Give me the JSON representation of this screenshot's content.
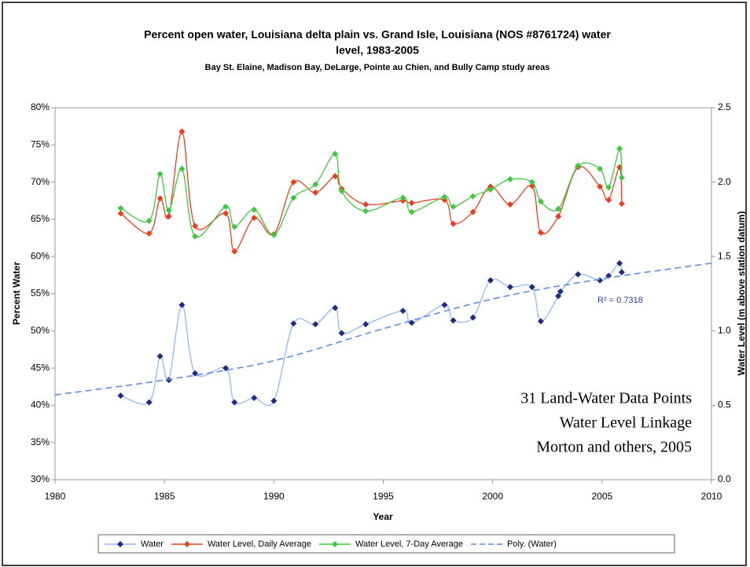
{
  "chart_data": {
    "type": "line",
    "title": "Percent open water, Louisiana delta plain vs. Grand Isle, Louisiana (NOS #8761724) water",
    "title_line2": "level, 1983-2005",
    "subtitle": "Bay St. Elaine, Madison Bay, DeLarge, Pointe au Chien, and Bully Camp study areas",
    "x_label": "Year",
    "y_label": "Percent Water",
    "y2_label": "Water Level (m above station datum)",
    "xlim": [
      1980,
      2010
    ],
    "xticks": [
      1980,
      1985,
      1990,
      1995,
      2000,
      2005,
      2010
    ],
    "ylim": [
      30,
      80
    ],
    "yticks": [
      {
        "value": 30,
        "label": "30%"
      },
      {
        "value": 35,
        "label": "35%"
      },
      {
        "value": 40,
        "label": "40%"
      },
      {
        "value": 45,
        "label": "45%"
      },
      {
        "value": 50,
        "label": "50%"
      },
      {
        "value": 55,
        "label": "55%"
      },
      {
        "value": 60,
        "label": "60%"
      },
      {
        "value": 65,
        "label": "65%"
      },
      {
        "value": 70,
        "label": "70%"
      },
      {
        "value": 75,
        "label": "75%"
      },
      {
        "value": 80,
        "label": "80%"
      }
    ],
    "y2lim": [
      0,
      2.5
    ],
    "y2ticks": [
      {
        "value": 0,
        "label": "0.0"
      },
      0.5,
      {
        "value": 1,
        "label": "1.0"
      },
      1.5,
      {
        "value": 2,
        "label": "2.0"
      },
      2.5
    ],
    "grid": false,
    "legend": "bottom",
    "series": [
      {
        "name": "Water",
        "color": "#8fb8f2",
        "marker_color": "#1f2a80",
        "smooth": true,
        "x": [
          1983.0,
          1984.3,
          1984.8,
          1985.2,
          1985.8,
          1986.4,
          1987.8,
          1988.2,
          1989.1,
          1990.0,
          1990.9,
          1991.9,
          1992.8,
          1993.1,
          1994.2,
          1995.9,
          1996.3,
          1997.8,
          1998.2,
          1999.1,
          1999.9,
          2000.8,
          2001.8,
          2002.2,
          2003.0,
          2003.1,
          2003.9,
          2004.9,
          2005.3,
          2005.8,
          2005.9
        ],
        "values": [
          41.3,
          40.4,
          46.6,
          43.4,
          53.5,
          44.3,
          45.0,
          40.4,
          41.0,
          40.6,
          51.0,
          50.9,
          53.1,
          49.7,
          50.9,
          52.7,
          51.1,
          53.5,
          51.4,
          51.8,
          56.8,
          55.9,
          55.9,
          51.3,
          54.7,
          55.3,
          57.6,
          56.8,
          57.4,
          59.1,
          57.9
        ]
      },
      {
        "name": "Water Level, Daily Average",
        "color": "#e8401f",
        "marker_color": "#e8401f",
        "axis": "y2",
        "smooth": true,
        "x": [
          1983.0,
          1984.3,
          1984.8,
          1985.2,
          1985.8,
          1986.4,
          1987.8,
          1988.2,
          1989.1,
          1990.0,
          1990.9,
          1991.9,
          1992.8,
          1993.1,
          1994.2,
          1995.9,
          1996.3,
          1997.8,
          1998.2,
          1999.1,
          1999.9,
          2000.8,
          2001.8,
          2002.2,
          2003.0,
          2003.9,
          2004.9,
          2005.3,
          2005.8,
          2005.9
        ],
        "values": [
          1.79,
          1.655,
          1.89,
          1.77,
          2.34,
          1.705,
          1.79,
          1.535,
          1.76,
          1.65,
          2.0,
          1.93,
          2.04,
          1.955,
          1.85,
          1.875,
          1.86,
          1.88,
          1.72,
          1.8,
          1.97,
          1.85,
          1.975,
          1.66,
          1.77,
          2.1,
          1.97,
          1.88,
          2.1,
          1.855
        ]
      },
      {
        "name": "Water Level, 7-Day Average",
        "color": "#3fc83f",
        "marker_color": "#3fc83f",
        "axis": "y2",
        "smooth": true,
        "x": [
          1983.0,
          1984.3,
          1984.8,
          1985.2,
          1985.8,
          1986.4,
          1987.8,
          1988.2,
          1989.1,
          1990.0,
          1990.9,
          1991.9,
          1992.8,
          1993.1,
          1994.2,
          1995.9,
          1996.3,
          1997.8,
          1998.2,
          1999.1,
          1999.9,
          2000.8,
          2001.8,
          2002.2,
          2003.0,
          2003.9,
          2004.9,
          2005.3,
          2005.8,
          2005.9
        ],
        "values": [
          1.825,
          1.74,
          2.055,
          1.81,
          2.09,
          1.635,
          1.835,
          1.7,
          1.815,
          1.645,
          1.895,
          1.985,
          2.19,
          1.94,
          1.805,
          1.895,
          1.8,
          1.9,
          1.835,
          1.905,
          1.95,
          2.02,
          2.0,
          1.87,
          1.82,
          2.11,
          2.09,
          1.965,
          2.225,
          2.03
        ]
      },
      {
        "name": "Poly. (Water)",
        "color": "#5b8ee6",
        "dash": true,
        "smooth": true,
        "x": [
          1980,
          1985,
          1990,
          1995,
          2000,
          2005,
          2010
        ],
        "values": [
          41.4,
          43.4,
          46.0,
          50.3,
          54.3,
          57.0,
          59.1
        ]
      }
    ],
    "annotations": [
      "R² = 0.7318"
    ],
    "text_box": [
      "31 Land-Water Data Points",
      "Water Level Linkage",
      "Morton and others, 2005"
    ]
  }
}
